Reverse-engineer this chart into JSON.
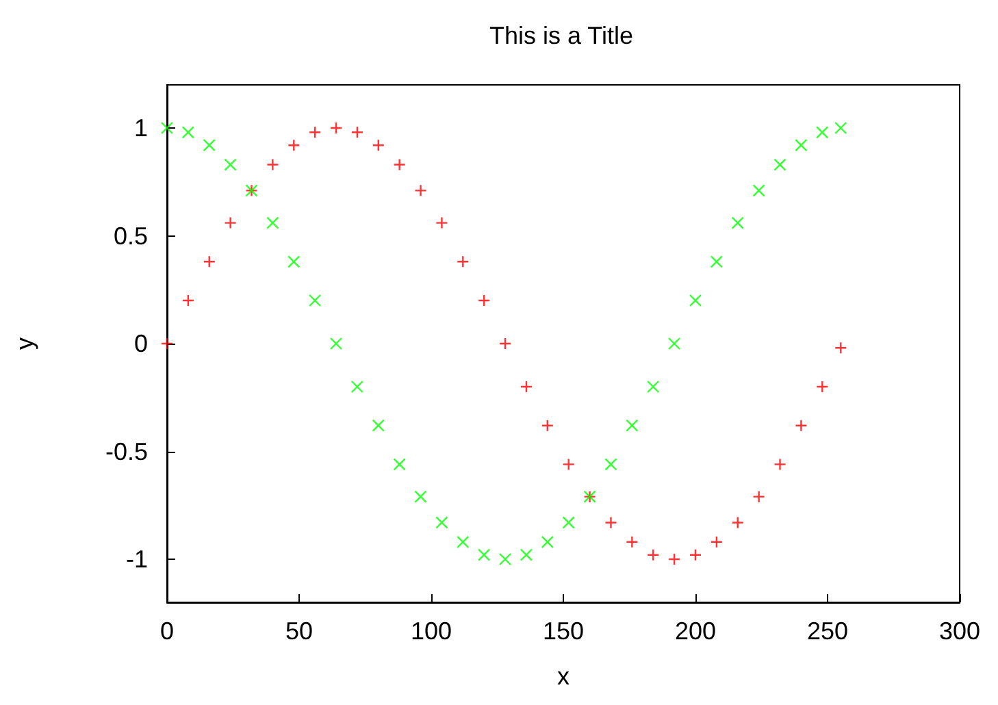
{
  "chart_data": {
    "type": "scatter",
    "title": "This is a Title",
    "xlabel": "x",
    "ylabel": "y",
    "x": [
      0,
      8,
      16,
      24,
      32,
      40,
      48,
      56,
      64,
      72,
      80,
      88,
      96,
      104,
      112,
      120,
      128,
      136,
      144,
      152,
      160,
      168,
      176,
      184,
      192,
      200,
      208,
      216,
      224,
      232,
      240,
      248,
      255
    ],
    "series": [
      {
        "color": "#ff0000",
        "marker": "cross",
        "values": [
          0,
          0.2,
          0.38,
          0.56,
          0.71,
          0.83,
          0.92,
          0.98,
          1,
          0.98,
          0.92,
          0.83,
          0.71,
          0.56,
          0.38,
          0.2,
          0,
          -0.2,
          -0.38,
          -0.56,
          -0.71,
          -0.83,
          -0.92,
          -0.98,
          -1,
          -0.98,
          -0.92,
          -0.83,
          -0.71,
          -0.56,
          -0.38,
          -0.2,
          -0.02
        ]
      },
      {
        "color": "#00ff00",
        "marker": "x",
        "values": [
          1,
          0.98,
          0.92,
          0.83,
          0.71,
          0.56,
          0.38,
          0.2,
          0,
          -0.2,
          -0.38,
          -0.56,
          -0.71,
          -0.83,
          -0.92,
          -0.98,
          -1,
          -0.98,
          -0.92,
          -0.83,
          -0.71,
          -0.56,
          -0.38,
          -0.2,
          0,
          0.2,
          0.38,
          0.56,
          0.71,
          0.83,
          0.92,
          0.98,
          1
        ]
      }
    ],
    "xlim": [
      0,
      300
    ],
    "xticks": [
      0,
      50,
      100,
      150,
      200,
      250,
      300
    ],
    "ylim": [
      -1.2,
      1.2
    ],
    "yticks": [
      -1,
      -0.5,
      0,
      0.5,
      1
    ],
    "grid": false
  }
}
